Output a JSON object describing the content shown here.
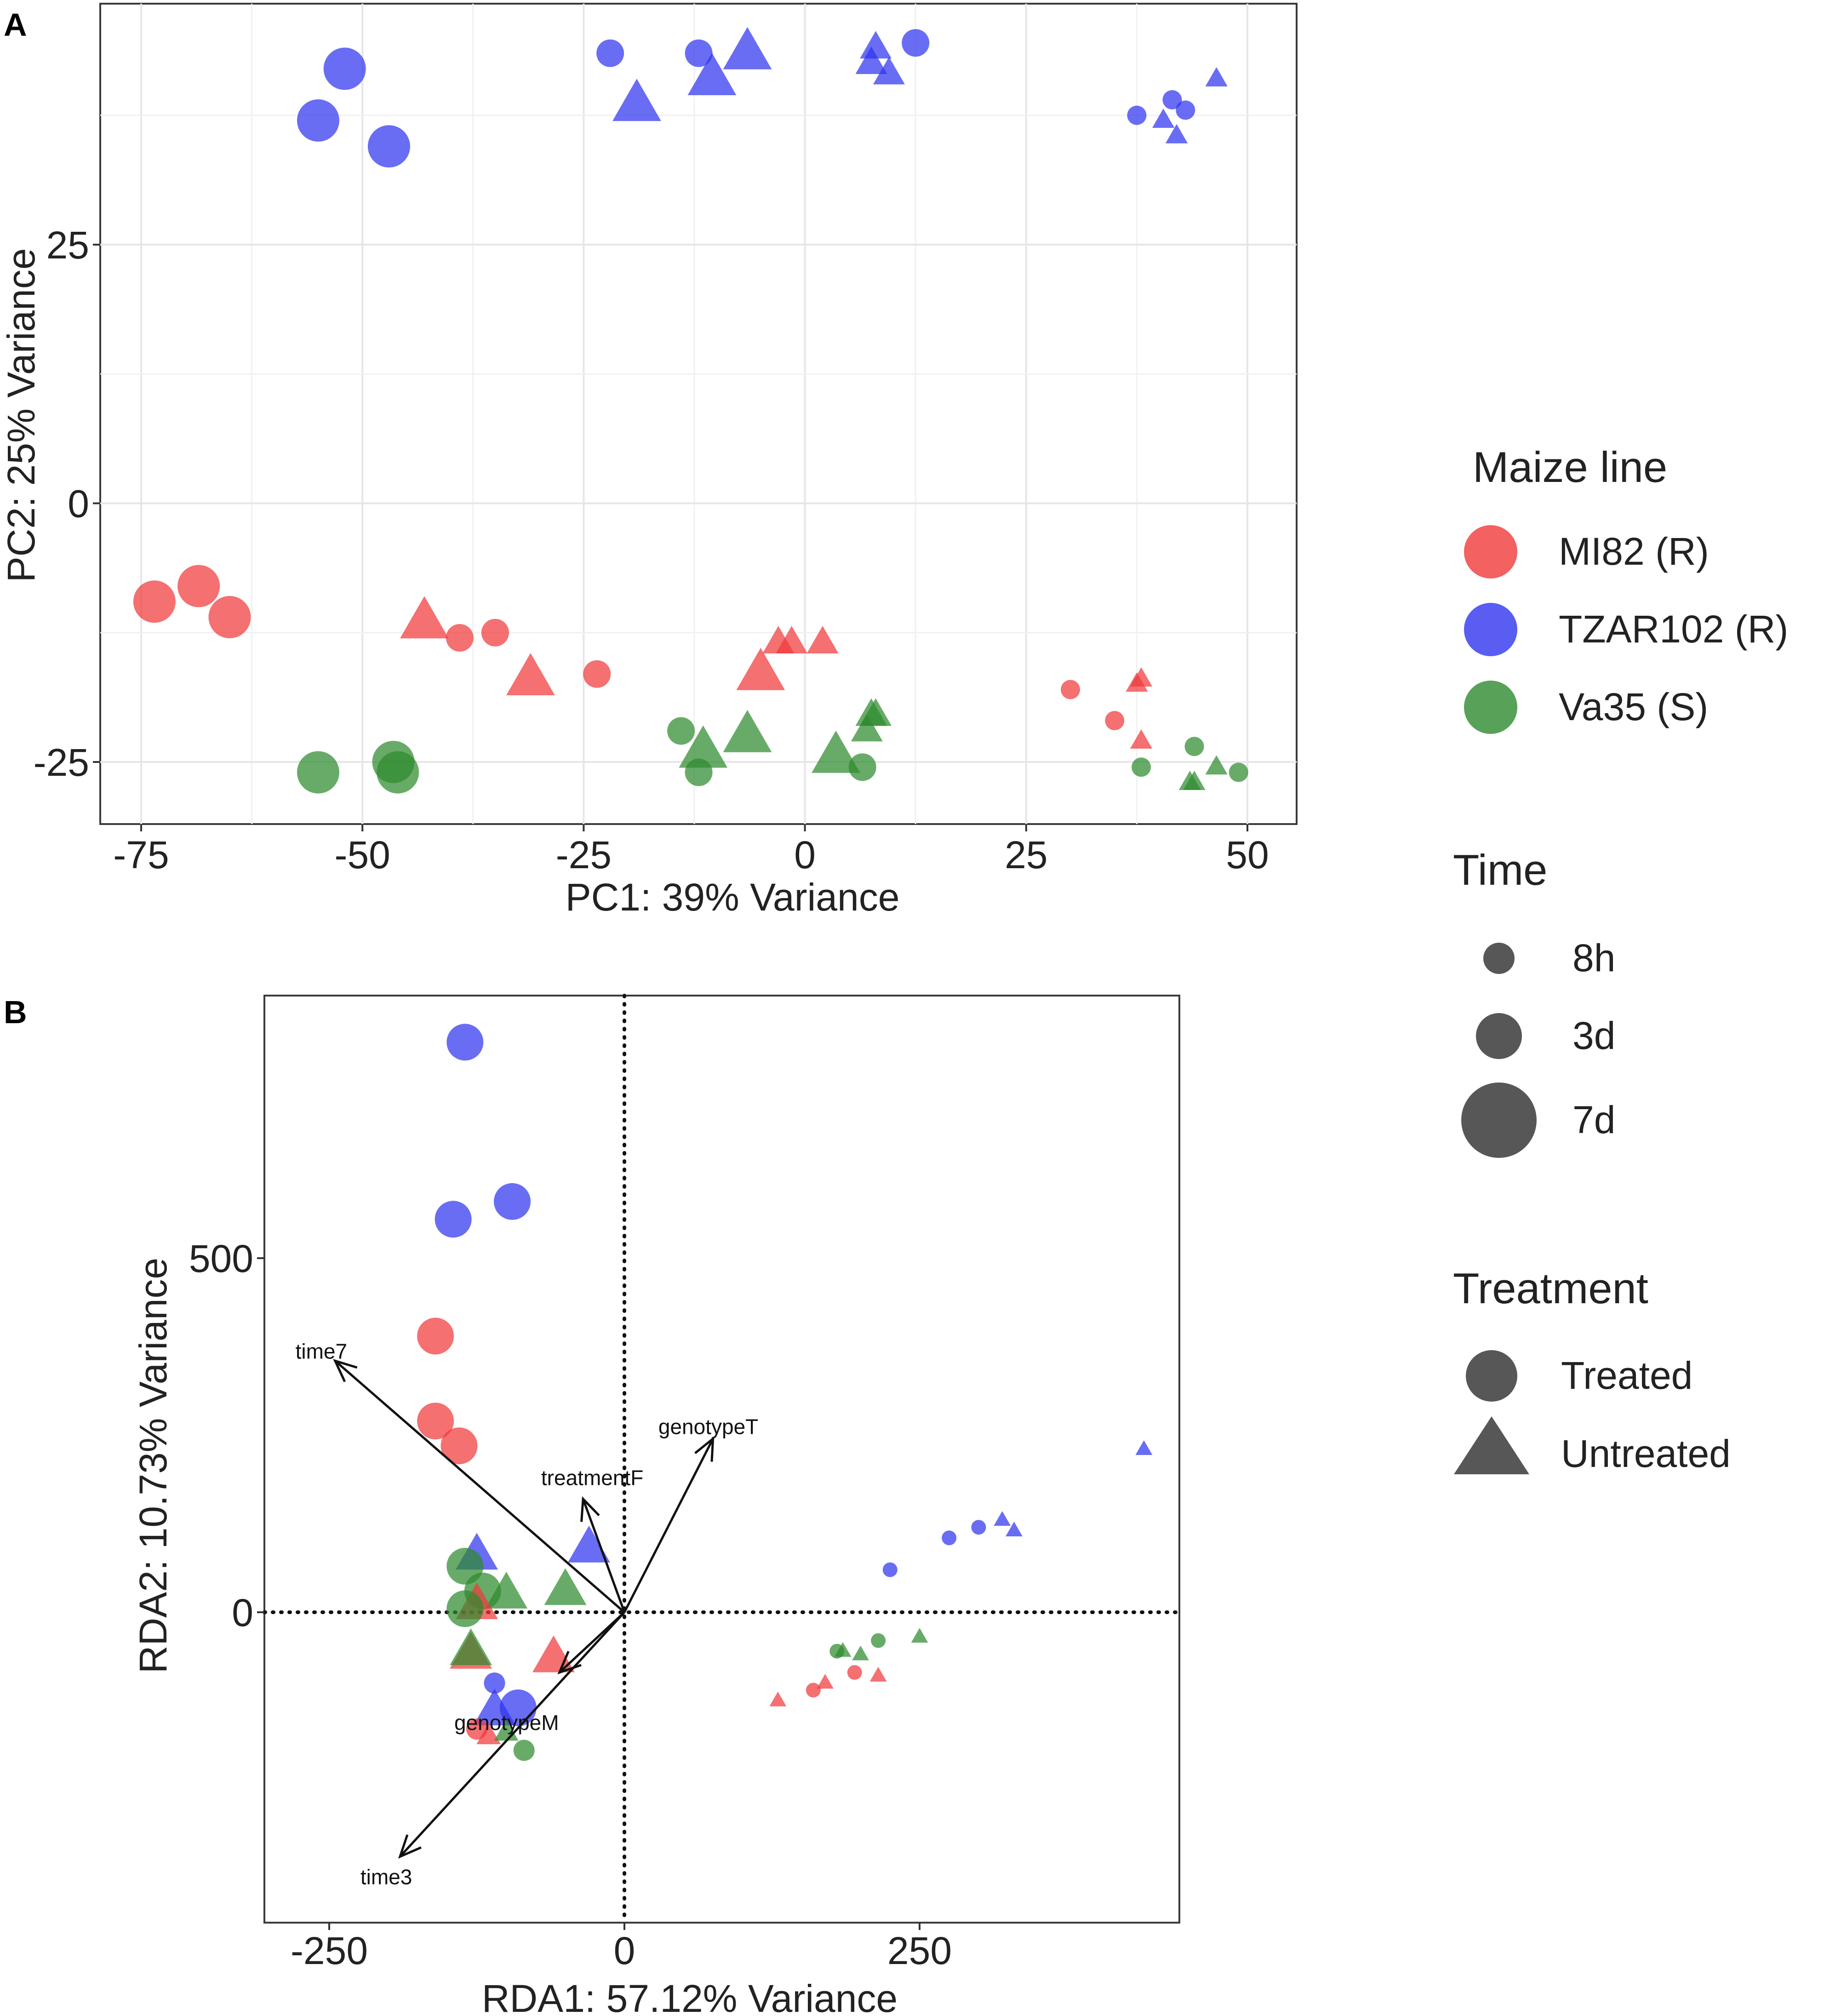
{
  "panel_labels": {
    "a": "A",
    "b": "B"
  },
  "colors": {
    "ml82": "#f0393a",
    "tzar102": "#2f34ef",
    "va35": "#2e8a2e",
    "legend_gray": "#1f1f1f"
  },
  "legend": {
    "maize_title": "Maize line",
    "maize_items": [
      {
        "label": "MI82 (R)",
        "color": "#f0393a"
      },
      {
        "label": "TZAR102 (R)",
        "color": "#2f34ef"
      },
      {
        "label": "Va35 (S)",
        "color": "#2e8a2e"
      }
    ],
    "time_title": "Time",
    "time_items": [
      {
        "label": "8h",
        "size": 1
      },
      {
        "label": "3d",
        "size": 2
      },
      {
        "label": "7d",
        "size": 3
      }
    ],
    "treatment_title": "Treatment",
    "treatment_items": [
      {
        "label": "Treated",
        "shape": "circle"
      },
      {
        "label": "Untreated",
        "shape": "triangle"
      }
    ]
  },
  "chart_data": [
    {
      "type": "scatter",
      "title": "",
      "xlabel": "PC1: 39% Variance",
      "ylabel": "PC2: 25% Variance",
      "xlim": [
        -80,
        55
      ],
      "ylim": [
        -30,
        48
      ],
      "xticks": [
        -75,
        -50,
        -25,
        0,
        25,
        50
      ],
      "yticks": [
        -25,
        0,
        25
      ],
      "grid": true,
      "points": [
        {
          "x": -52,
          "y": 42,
          "g": "tzar102",
          "t": "7d",
          "s": "circle"
        },
        {
          "x": -55,
          "y": 37,
          "g": "tzar102",
          "t": "7d",
          "s": "circle"
        },
        {
          "x": -47,
          "y": 34.5,
          "g": "tzar102",
          "t": "7d",
          "s": "circle"
        },
        {
          "x": -22,
          "y": 43.5,
          "g": "tzar102",
          "t": "3d",
          "s": "circle"
        },
        {
          "x": -12,
          "y": 43.5,
          "g": "tzar102",
          "t": "3d",
          "s": "circle"
        },
        {
          "x": 12.5,
          "y": 44.5,
          "g": "tzar102",
          "t": "3d",
          "s": "circle"
        },
        {
          "x": -19,
          "y": 38.5,
          "g": "tzar102",
          "t": "7d",
          "s": "triangle"
        },
        {
          "x": -10.5,
          "y": 41,
          "g": "tzar102",
          "t": "7d",
          "s": "triangle"
        },
        {
          "x": -6.5,
          "y": 43.5,
          "g": "tzar102",
          "t": "7d",
          "s": "triangle"
        },
        {
          "x": 8,
          "y": 44,
          "g": "tzar102",
          "t": "3d",
          "s": "triangle"
        },
        {
          "x": 7.5,
          "y": 42.5,
          "g": "tzar102",
          "t": "3d",
          "s": "triangle"
        },
        {
          "x": 9.5,
          "y": 41.5,
          "g": "tzar102",
          "t": "3d",
          "s": "triangle"
        },
        {
          "x": 37.5,
          "y": 37.5,
          "g": "tzar102",
          "t": "8h",
          "s": "circle"
        },
        {
          "x": 41.5,
          "y": 39,
          "g": "tzar102",
          "t": "8h",
          "s": "circle"
        },
        {
          "x": 43,
          "y": 38,
          "g": "tzar102",
          "t": "8h",
          "s": "circle"
        },
        {
          "x": 40.5,
          "y": 37,
          "g": "tzar102",
          "t": "8h",
          "s": "triangle"
        },
        {
          "x": 42,
          "y": 35.5,
          "g": "tzar102",
          "t": "8h",
          "s": "triangle"
        },
        {
          "x": 46.5,
          "y": 41,
          "g": "tzar102",
          "t": "8h",
          "s": "triangle"
        },
        {
          "x": -73.5,
          "y": -9.5,
          "g": "ml82",
          "t": "7d",
          "s": "circle"
        },
        {
          "x": -68.5,
          "y": -8,
          "g": "ml82",
          "t": "7d",
          "s": "circle"
        },
        {
          "x": -65,
          "y": -11,
          "g": "ml82",
          "t": "7d",
          "s": "circle"
        },
        {
          "x": -39,
          "y": -13,
          "g": "ml82",
          "t": "3d",
          "s": "circle"
        },
        {
          "x": -35,
          "y": -12.5,
          "g": "ml82",
          "t": "3d",
          "s": "circle"
        },
        {
          "x": -23.5,
          "y": -16.5,
          "g": "ml82",
          "t": "3d",
          "s": "circle"
        },
        {
          "x": -43,
          "y": -11.5,
          "g": "ml82",
          "t": "7d",
          "s": "triangle"
        },
        {
          "x": -31,
          "y": -17,
          "g": "ml82",
          "t": "7d",
          "s": "triangle"
        },
        {
          "x": -5,
          "y": -16.5,
          "g": "ml82",
          "t": "7d",
          "s": "triangle"
        },
        {
          "x": -3,
          "y": -13.5,
          "g": "ml82",
          "t": "3d",
          "s": "triangle"
        },
        {
          "x": -1.5,
          "y": -13.5,
          "g": "ml82",
          "t": "3d",
          "s": "triangle"
        },
        {
          "x": 2,
          "y": -13.5,
          "g": "ml82",
          "t": "3d",
          "s": "triangle"
        },
        {
          "x": 30,
          "y": -18,
          "g": "ml82",
          "t": "8h",
          "s": "circle"
        },
        {
          "x": 35,
          "y": -21,
          "g": "ml82",
          "t": "8h",
          "s": "circle"
        },
        {
          "x": 37.5,
          "y": -17.5,
          "g": "ml82",
          "t": "8h",
          "s": "triangle"
        },
        {
          "x": 38,
          "y": -17,
          "g": "ml82",
          "t": "8h",
          "s": "triangle"
        },
        {
          "x": 38,
          "y": -23,
          "g": "ml82",
          "t": "8h",
          "s": "triangle"
        },
        {
          "x": -55,
          "y": -26,
          "g": "va35",
          "t": "7d",
          "s": "circle"
        },
        {
          "x": -46.5,
          "y": -25,
          "g": "va35",
          "t": "7d",
          "s": "circle"
        },
        {
          "x": -46,
          "y": -26,
          "g": "va35",
          "t": "7d",
          "s": "circle"
        },
        {
          "x": -14,
          "y": -22,
          "g": "va35",
          "t": "3d",
          "s": "circle"
        },
        {
          "x": -12,
          "y": -26,
          "g": "va35",
          "t": "3d",
          "s": "circle"
        },
        {
          "x": 6.5,
          "y": -25.5,
          "g": "va35",
          "t": "3d",
          "s": "circle"
        },
        {
          "x": -11.5,
          "y": -24,
          "g": "va35",
          "t": "7d",
          "s": "triangle"
        },
        {
          "x": -6.5,
          "y": -22.5,
          "g": "va35",
          "t": "7d",
          "s": "triangle"
        },
        {
          "x": 3.5,
          "y": -24.5,
          "g": "va35",
          "t": "7d",
          "s": "triangle"
        },
        {
          "x": 7,
          "y": -22,
          "g": "va35",
          "t": "3d",
          "s": "triangle"
        },
        {
          "x": 7.5,
          "y": -20.5,
          "g": "va35",
          "t": "3d",
          "s": "triangle"
        },
        {
          "x": 8,
          "y": -20.5,
          "g": "va35",
          "t": "3d",
          "s": "triangle"
        },
        {
          "x": 38,
          "y": -25.5,
          "g": "va35",
          "t": "8h",
          "s": "circle"
        },
        {
          "x": 44,
          "y": -23.5,
          "g": "va35",
          "t": "8h",
          "s": "circle"
        },
        {
          "x": 49,
          "y": -26,
          "g": "va35",
          "t": "8h",
          "s": "circle"
        },
        {
          "x": 43.5,
          "y": -27,
          "g": "va35",
          "t": "8h",
          "s": "triangle"
        },
        {
          "x": 44,
          "y": -27,
          "g": "va35",
          "t": "8h",
          "s": "triangle"
        },
        {
          "x": 46.5,
          "y": -25.5,
          "g": "va35",
          "t": "8h",
          "s": "triangle"
        }
      ]
    },
    {
      "type": "scatter",
      "title": "",
      "xlabel": "RDA1: 57.12% Variance",
      "ylabel": "RDA2: 10.73% Variance",
      "xlim": [
        -325,
        455
      ],
      "ylim": [
        -440,
        865
      ],
      "xticks": [
        -250,
        0,
        250
      ],
      "yticks": [
        0,
        500
      ],
      "reference_lines": {
        "x": 0,
        "y": 0,
        "style": "dotted"
      },
      "vectors": [
        {
          "label": "time7",
          "x": -245,
          "y": 355
        },
        {
          "label": "genotypeT",
          "x": 75,
          "y": 245
        },
        {
          "label": "treatmentF",
          "x": -35,
          "y": 160
        },
        {
          "label": "genotypeM",
          "x": -55,
          "y": -85
        },
        {
          "label": "time3",
          "x": -190,
          "y": -345
        }
      ],
      "points": [
        {
          "x": -135,
          "y": 805,
          "g": "tzar102",
          "t": "7d",
          "s": "circle"
        },
        {
          "x": -145,
          "y": 555,
          "g": "tzar102",
          "t": "7d",
          "s": "circle"
        },
        {
          "x": -95,
          "y": 580,
          "g": "tzar102",
          "t": "7d",
          "s": "circle"
        },
        {
          "x": -160,
          "y": 390,
          "g": "ml82",
          "t": "7d",
          "s": "circle"
        },
        {
          "x": -160,
          "y": 270,
          "g": "ml82",
          "t": "7d",
          "s": "circle"
        },
        {
          "x": -140,
          "y": 235,
          "g": "ml82",
          "t": "7d",
          "s": "circle"
        },
        {
          "x": -30,
          "y": 90,
          "g": "tzar102",
          "t": "7d",
          "s": "triangle"
        },
        {
          "x": -125,
          "y": 80,
          "g": "tzar102",
          "t": "7d",
          "s": "triangle"
        },
        {
          "x": -135,
          "y": 65,
          "g": "va35",
          "t": "7d",
          "s": "circle"
        },
        {
          "x": -120,
          "y": 30,
          "g": "va35",
          "t": "7d",
          "s": "circle"
        },
        {
          "x": -100,
          "y": 25,
          "g": "va35",
          "t": "7d",
          "s": "triangle"
        },
        {
          "x": -50,
          "y": 30,
          "g": "va35",
          "t": "7d",
          "s": "triangle"
        },
        {
          "x": -125,
          "y": 10,
          "g": "ml82",
          "t": "7d",
          "s": "triangle"
        },
        {
          "x": -135,
          "y": 5,
          "g": "va35",
          "t": "7d",
          "s": "circle"
        },
        {
          "x": -130,
          "y": -60,
          "g": "ml82",
          "t": "7d",
          "s": "triangle"
        },
        {
          "x": -130,
          "y": -55,
          "g": "va35",
          "t": "7d",
          "s": "triangle"
        },
        {
          "x": -60,
          "y": -65,
          "g": "ml82",
          "t": "7d",
          "s": "triangle"
        },
        {
          "x": -110,
          "y": -100,
          "g": "tzar102",
          "t": "3d",
          "s": "circle"
        },
        {
          "x": -110,
          "y": -140,
          "g": "tzar102",
          "t": "7d",
          "s": "triangle"
        },
        {
          "x": -90,
          "y": -135,
          "g": "tzar102",
          "t": "7d",
          "s": "circle"
        },
        {
          "x": -125,
          "y": -165,
          "g": "ml82",
          "t": "3d",
          "s": "circle"
        },
        {
          "x": -115,
          "y": -175,
          "g": "ml82",
          "t": "3d",
          "s": "triangle"
        },
        {
          "x": -100,
          "y": -170,
          "g": "va35",
          "t": "3d",
          "s": "triangle"
        },
        {
          "x": -85,
          "y": -195,
          "g": "va35",
          "t": "3d",
          "s": "circle"
        },
        {
          "x": 130,
          "y": -125,
          "g": "ml82",
          "t": "8h",
          "s": "triangle"
        },
        {
          "x": 160,
          "y": -110,
          "g": "ml82",
          "t": "8h",
          "s": "circle"
        },
        {
          "x": 170,
          "y": -100,
          "g": "ml82",
          "t": "8h",
          "s": "triangle"
        },
        {
          "x": 195,
          "y": -85,
          "g": "ml82",
          "t": "8h",
          "s": "circle"
        },
        {
          "x": 215,
          "y": -90,
          "g": "ml82",
          "t": "8h",
          "s": "triangle"
        },
        {
          "x": 180,
          "y": -55,
          "g": "va35",
          "t": "8h",
          "s": "circle"
        },
        {
          "x": 185,
          "y": -55,
          "g": "va35",
          "t": "8h",
          "s": "triangle"
        },
        {
          "x": 200,
          "y": -60,
          "g": "va35",
          "t": "8h",
          "s": "triangle"
        },
        {
          "x": 215,
          "y": -40,
          "g": "va35",
          "t": "8h",
          "s": "circle"
        },
        {
          "x": 250,
          "y": -35,
          "g": "va35",
          "t": "8h",
          "s": "triangle"
        },
        {
          "x": 225,
          "y": 60,
          "g": "tzar102",
          "t": "8h",
          "s": "circle"
        },
        {
          "x": 275,
          "y": 105,
          "g": "tzar102",
          "t": "8h",
          "s": "circle"
        },
        {
          "x": 300,
          "y": 120,
          "g": "tzar102",
          "t": "8h",
          "s": "circle"
        },
        {
          "x": 320,
          "y": 130,
          "g": "tzar102",
          "t": "8h",
          "s": "triangle"
        },
        {
          "x": 330,
          "y": 115,
          "g": "tzar102",
          "t": "8h",
          "s": "triangle"
        },
        {
          "x": 440,
          "y": 230,
          "g": "tzar102",
          "t": "8h",
          "s": "triangle"
        }
      ]
    }
  ]
}
